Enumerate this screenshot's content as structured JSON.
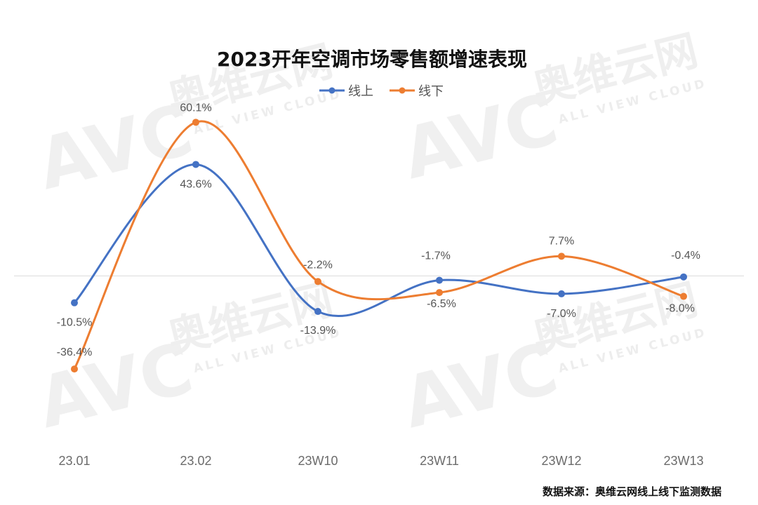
{
  "watermark": {
    "logo": "AVC",
    "cn": "奥维云网",
    "en": "ALL VIEW CLOUD"
  },
  "chart_data": {
    "type": "line",
    "title": "2023开年空调市场零售额增速表现",
    "categories": [
      "23.01",
      "23.02",
      "23W10",
      "23W11",
      "23W12",
      "23W13"
    ],
    "series": [
      {
        "name": "线上",
        "color": "#4472C4",
        "values": [
          -10.5,
          43.6,
          -13.9,
          -1.7,
          -7.0,
          -0.4
        ],
        "labels": [
          "-10.5%",
          "43.6%",
          "-13.9%",
          "-1.7%",
          "-7.0%",
          "-0.4%"
        ]
      },
      {
        "name": "线下",
        "color": "#ED7D31",
        "values": [
          -36.4,
          60.1,
          -2.2,
          -6.5,
          7.7,
          -8.0
        ],
        "labels": [
          "-36.4%",
          "60.1%",
          "-2.2%",
          "-6.5%",
          "7.7%",
          "-8.0%"
        ]
      }
    ],
    "ylim": [
      -80,
      75
    ],
    "zero_line": true,
    "grid": false,
    "legend_position": "top-center",
    "smooth": true,
    "source": "数据来源：奥维云网线上线下监测数据"
  }
}
